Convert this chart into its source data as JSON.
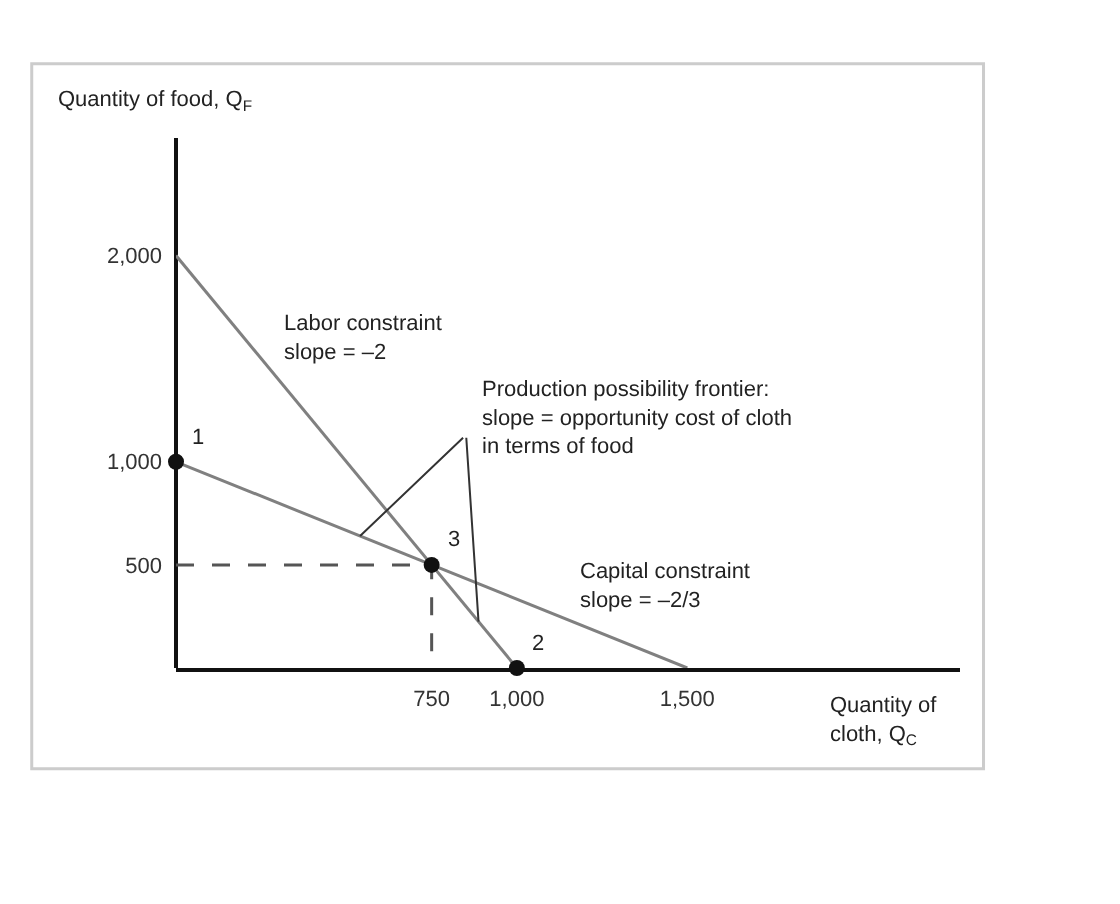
{
  "chart_data": {
    "type": "line",
    "xlabel": "Quantity of\ncloth, Q$_{C}$",
    "ylabel": "Quantity of food, Q$_{F}$",
    "xlim": [
      0,
      2300
    ],
    "ylim": [
      0,
      2570
    ],
    "xticks": [
      750,
      {
        "value": 1000,
        "label": "1,000"
      },
      {
        "value": 1500,
        "label": "1,500"
      }
    ],
    "yticks": [
      500,
      {
        "value": 1000,
        "label": "1,000"
      },
      {
        "value": 2000,
        "label": "2,000"
      }
    ],
    "series": [
      {
        "color": "#808080",
        "x": [
          0,
          1000
        ],
        "values": [
          2000,
          0
        ],
        "line_style": "solid"
      },
      {
        "color": "#808080",
        "x": [
          0,
          1500
        ],
        "values": [
          1000,
          0
        ],
        "line_style": "solid"
      },
      {
        "color": "#555555",
        "x": [
          0,
          750,
          750
        ],
        "values": [
          500,
          500,
          0
        ],
        "line_style": "dashed"
      },
      {
        "type": "scatter",
        "color": "#111111",
        "x": [
          0,
          750,
          1000
        ],
        "values": [
          1000,
          500,
          0
        ],
        "marker": "circle"
      }
    ],
    "annotations": [
      {
        "text": "1",
        "x": 0,
        "y": 1000
      },
      {
        "text": "3",
        "x": 750,
        "y": 500
      },
      {
        "text": "2",
        "x": 1000,
        "y": 0
      },
      {
        "text": "Labor constraint\nslope = –2",
        "x": 280,
        "y": 1440
      },
      {
        "text": "Capital constraint\nslope = –2/3",
        "x": 1150,
        "y": 233
      },
      {
        "text": "Production possibility frontier:\nslope = opportunity cost of cloth\nin terms of food",
        "x": 540,
        "y": 640
      }
    ]
  }
}
